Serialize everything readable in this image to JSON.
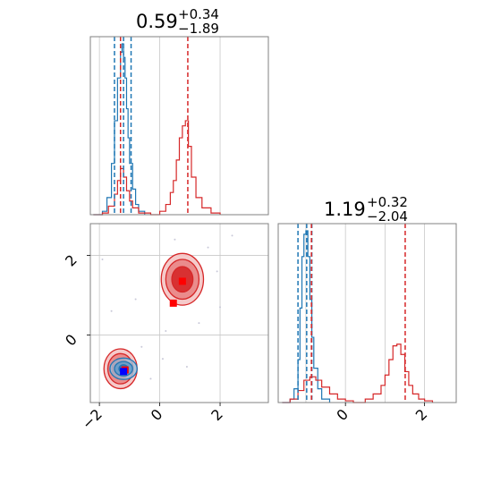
{
  "chart_data": [
    {
      "panel": "marginal-x",
      "type": "histogram",
      "title": {
        "value": "0.59",
        "plus": "+0.34",
        "minus": "−1.89"
      },
      "xlim": [
        -2.3,
        3.6
      ],
      "grid": true,
      "series": [
        {
          "name": "",
          "color": "#1f77b4",
          "x": [
            -2.2,
            -1.9,
            -1.75,
            -1.6,
            -1.5,
            -1.4,
            -1.3,
            -1.25,
            -1.2,
            -1.15,
            -1.1,
            -1.05,
            -1.0,
            -0.9,
            -0.8,
            -0.7,
            -0.5
          ],
          "y": [
            0.0,
            0.02,
            0.1,
            0.3,
            0.55,
            0.8,
            0.95,
            1.0,
            0.92,
            0.8,
            0.62,
            0.45,
            0.3,
            0.15,
            0.06,
            0.02,
            0.0
          ],
          "quantiles": [
            -1.5,
            -1.2,
            -0.95
          ]
        },
        {
          "name": "",
          "color": "#d62728",
          "x": [
            -2.2,
            -1.9,
            -1.7,
            -1.5,
            -1.4,
            -1.3,
            -1.2,
            -1.1,
            -1.0,
            -0.9,
            -0.7,
            -0.3,
            0.0,
            0.2,
            0.35,
            0.45,
            0.55,
            0.65,
            0.75,
            0.85,
            0.95,
            1.05,
            1.2,
            1.4,
            1.7,
            2.0
          ],
          "y": [
            0.0,
            0.01,
            0.05,
            0.12,
            0.2,
            0.27,
            0.22,
            0.14,
            0.08,
            0.04,
            0.01,
            0.0,
            0.02,
            0.06,
            0.13,
            0.2,
            0.32,
            0.45,
            0.52,
            0.55,
            0.4,
            0.22,
            0.1,
            0.04,
            0.01,
            0.0
          ],
          "quantiles": [
            -1.3,
            0.93
          ]
        }
      ]
    },
    {
      "panel": "joint",
      "type": "contour",
      "xlim": [
        -2.3,
        3.6
      ],
      "ylim": [
        -1.7,
        2.8
      ],
      "xticks": [
        "−2",
        "0",
        "2"
      ],
      "yticks": [
        "0",
        "2"
      ],
      "grid": true,
      "series": [
        {
          "name": "",
          "color": "#d62728",
          "modes": [
            {
              "cx": -1.3,
              "cy": -0.85,
              "levels": [
                [
                  0.55,
                  0.5
                ],
                [
                  0.42,
                  0.38
                ],
                [
                  0.28,
                  0.26
                ]
              ]
            },
            {
              "cx": 0.75,
              "cy": 1.4,
              "levels": [
                [
                  0.7,
                  0.65
                ],
                [
                  0.55,
                  0.5
                ],
                [
                  0.35,
                  0.32
                ]
              ]
            }
          ]
        },
        {
          "name": "",
          "color": "#1f77b4",
          "modes": [
            {
              "cx": -1.2,
              "cy": -0.85,
              "levels": [
                [
                  0.45,
                  0.27
                ],
                [
                  0.3,
                  0.18
                ],
                [
                  0.15,
                  0.1
                ]
              ]
            }
          ]
        }
      ],
      "markers": [
        {
          "color": "#ff0000",
          "shape": "square",
          "x": -1.15,
          "y": -0.88
        },
        {
          "color": "#0000ff",
          "shape": "square",
          "x": -1.2,
          "y": -0.92
        },
        {
          "color": "#ff0000",
          "shape": "square",
          "x": 0.75,
          "y": 1.35
        },
        {
          "color": "#ff0000",
          "shape": "square",
          "x": 0.45,
          "y": 0.8
        }
      ]
    },
    {
      "panel": "marginal-y",
      "type": "histogram",
      "title": {
        "value": "1.19",
        "plus": "+0.32",
        "minus": "−2.04"
      },
      "xlim": [
        -1.7,
        2.8
      ],
      "xticks": [
        "0",
        "2"
      ],
      "grid": true,
      "series": [
        {
          "name": "",
          "color": "#1f77b4",
          "x": [
            -1.6,
            -1.4,
            -1.3,
            -1.2,
            -1.15,
            -1.1,
            -1.05,
            -1.0,
            -0.95,
            -0.9,
            -0.85,
            -0.8,
            -0.7,
            -0.6,
            -0.4
          ],
          "y": [
            0.0,
            0.02,
            0.08,
            0.25,
            0.55,
            0.85,
            0.98,
            1.0,
            0.85,
            0.6,
            0.38,
            0.2,
            0.08,
            0.02,
            0.0
          ],
          "quantiles": [
            -1.2,
            -0.98,
            -0.85
          ]
        },
        {
          "name": "",
          "color": "#d62728",
          "x": [
            -1.6,
            -1.4,
            -1.2,
            -1.05,
            -0.9,
            -0.75,
            -0.6,
            -0.4,
            -0.2,
            0.0,
            0.2,
            0.5,
            0.7,
            0.9,
            1.0,
            1.1,
            1.2,
            1.3,
            1.4,
            1.5,
            1.6,
            1.7,
            1.85,
            2.0,
            2.2
          ],
          "y": [
            0.0,
            0.02,
            0.07,
            0.13,
            0.15,
            0.13,
            0.09,
            0.05,
            0.02,
            0.01,
            0.0,
            0.02,
            0.05,
            0.1,
            0.16,
            0.25,
            0.33,
            0.34,
            0.28,
            0.18,
            0.1,
            0.05,
            0.02,
            0.01,
            0.0
          ],
          "quantiles": [
            -0.86,
            1.51
          ]
        }
      ]
    }
  ]
}
